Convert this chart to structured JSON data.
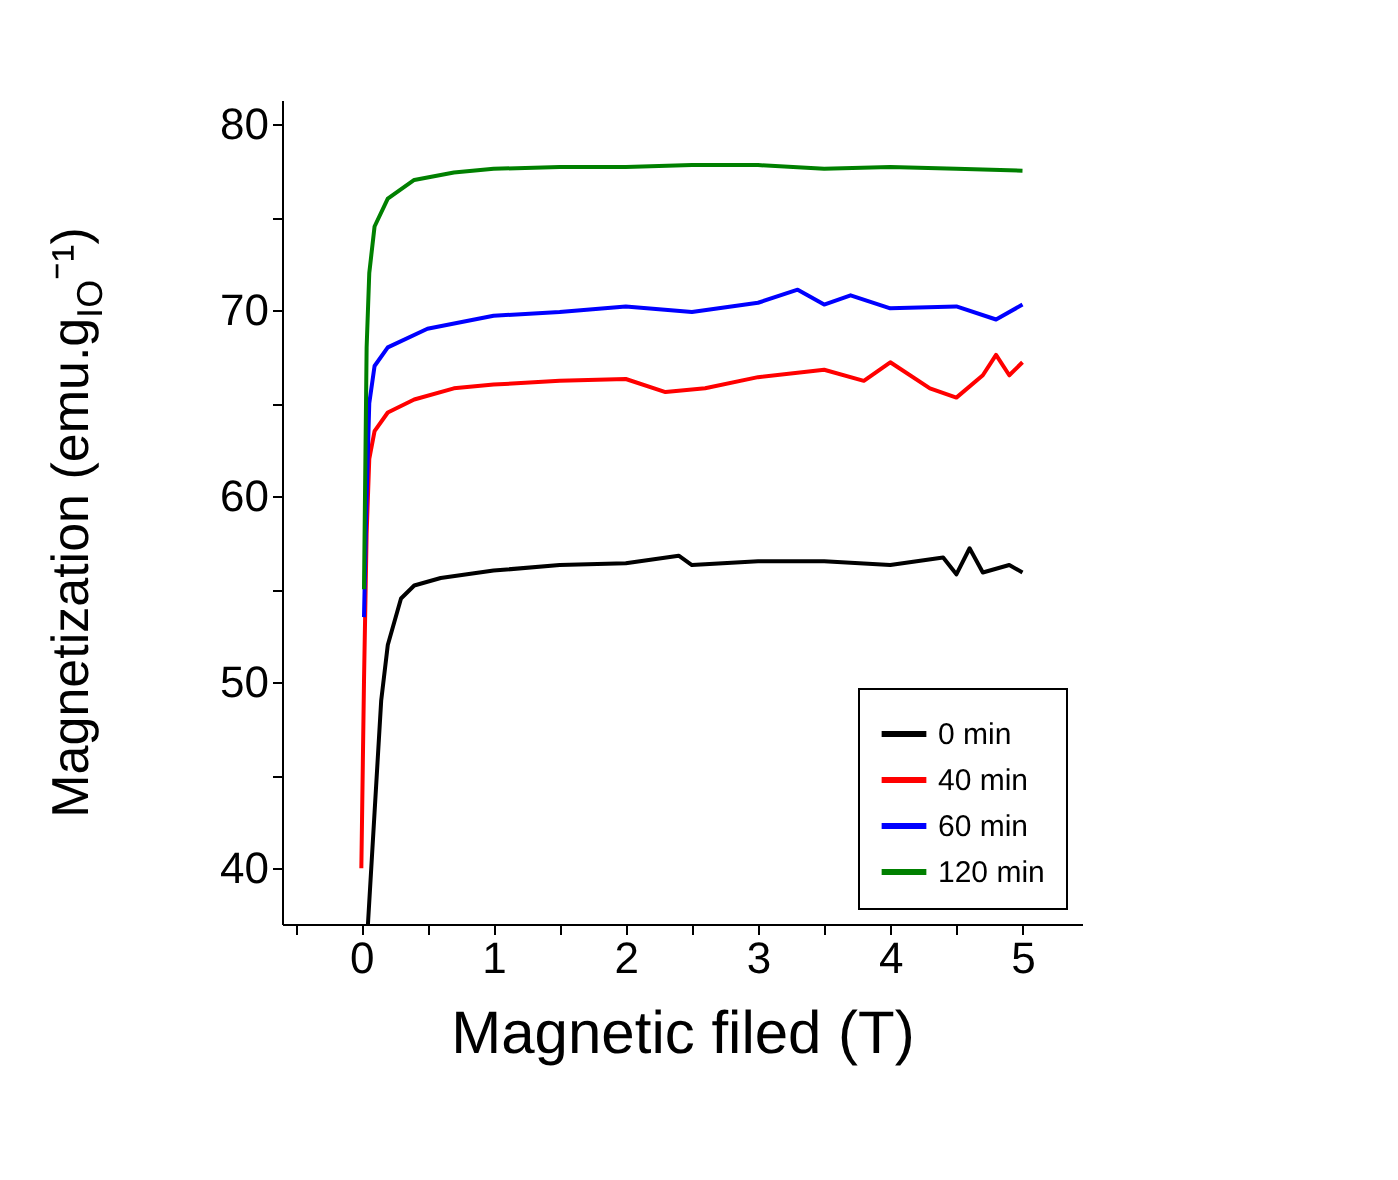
{
  "chart_data": {
    "type": "line",
    "xlabel": "Magnetic filed (T)",
    "ylabel": "Magnetization (emu.g$_{IO}$⁻¹)",
    "xlim": [
      -0.6,
      5.45
    ],
    "ylim": [
      37,
      81.3
    ],
    "xticks": [
      {
        "value": -0.5,
        "label": null
      },
      0,
      {
        "value": 0.5,
        "label": null
      },
      1,
      {
        "value": 1.5,
        "label": null
      },
      2,
      {
        "value": 2.5,
        "label": null
      },
      3,
      {
        "value": 3.5,
        "label": null
      },
      4,
      {
        "value": 4.5,
        "label": null
      },
      5
    ],
    "yticks": [
      40,
      {
        "value": 45,
        "label": null
      },
      50,
      {
        "value": 55,
        "label": null
      },
      60,
      {
        "value": 65,
        "label": null
      },
      70,
      {
        "value": 75,
        "label": null
      },
      80
    ],
    "grid": false,
    "legend": "bottom right",
    "marker": "none",
    "line_style": "solid",
    "series": [
      {
        "name": "0 min",
        "color": "#000000",
        "x": [
          0.05,
          0.1,
          0.15,
          0.2,
          0.3,
          0.4,
          0.6,
          1,
          1.5,
          2,
          2.4,
          2.5,
          3,
          3.5,
          4,
          4.4,
          4.5,
          4.6,
          4.7,
          4.9,
          5
        ],
        "values": [
          37,
          43,
          49,
          52,
          54.5,
          55.2,
          55.6,
          56,
          56.3,
          56.4,
          56.8,
          56.3,
          56.5,
          56.5,
          56.3,
          56.7,
          55.8,
          57.2,
          55.9,
          56.3,
          55.9
        ]
      },
      {
        "name": "40 min",
        "color": "#ff0000",
        "x": [
          0.0,
          0.02,
          0.04,
          0.06,
          0.1,
          0.2,
          0.4,
          0.7,
          1,
          1.5,
          2,
          2.3,
          2.6,
          3,
          3.5,
          3.8,
          4,
          4.3,
          4.5,
          4.7,
          4.8,
          4.9,
          5
        ],
        "values": [
          40,
          50,
          58,
          62,
          63.5,
          64.5,
          65.2,
          65.8,
          66,
          66.2,
          66.3,
          65.6,
          65.8,
          66.4,
          66.8,
          66.2,
          67.2,
          65.8,
          65.3,
          66.5,
          67.6,
          66.5,
          67.2
        ]
      },
      {
        "name": "60 min",
        "color": "#0000ff",
        "x": [
          0.02,
          0.04,
          0.06,
          0.1,
          0.2,
          0.5,
          1,
          1.5,
          2,
          2.5,
          3,
          3.3,
          3.5,
          3.7,
          4,
          4.5,
          4.8,
          5
        ],
        "values": [
          53.5,
          60,
          65,
          67,
          68,
          69,
          69.7,
          69.9,
          70.2,
          69.9,
          70.4,
          71.1,
          70.3,
          70.8,
          70.1,
          70.2,
          69.5,
          70.3
        ]
      },
      {
        "name": "120 min",
        "color": "#008000",
        "x": [
          0.02,
          0.04,
          0.06,
          0.1,
          0.2,
          0.4,
          0.7,
          1,
          1.5,
          2,
          2.5,
          3,
          3.5,
          4,
          4.5,
          5
        ],
        "values": [
          55,
          68,
          72,
          74.5,
          76,
          77,
          77.4,
          77.6,
          77.7,
          77.7,
          77.8,
          77.8,
          77.6,
          77.7,
          77.6,
          77.5
        ]
      }
    ]
  }
}
